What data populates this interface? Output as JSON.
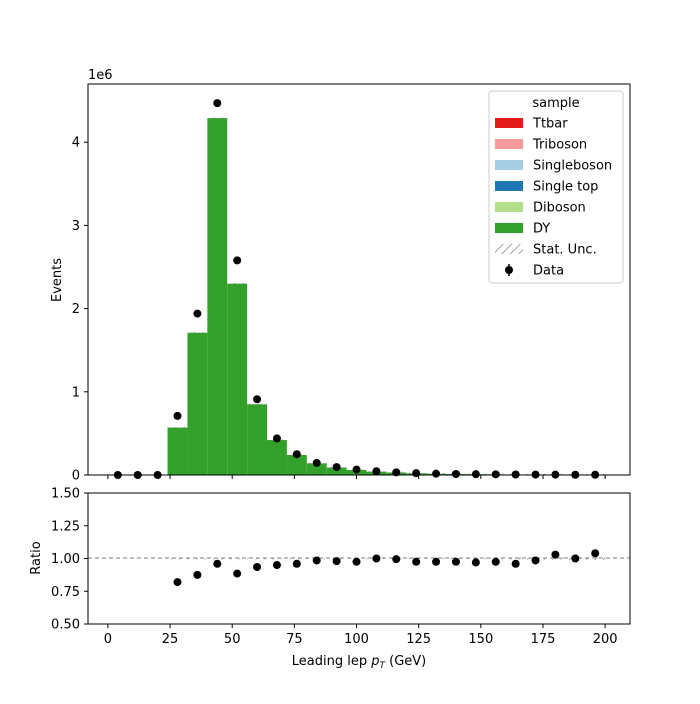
{
  "chart_data": {
    "type": "bar",
    "stacked": true,
    "main": {
      "ylabel": "Events",
      "offset_text": "1e6",
      "ylim": [
        0,
        4.7
      ],
      "yticks": [
        0,
        1,
        2,
        3,
        4
      ],
      "ytick_labels": [
        "0",
        "1",
        "2",
        "3",
        "4"
      ]
    },
    "ratio": {
      "ylabel": "Ratio",
      "ylim": [
        0.5,
        1.5
      ],
      "yticks": [
        0.5,
        0.75,
        1.0,
        1.25,
        1.5
      ],
      "ytick_labels": [
        "0.50",
        "0.75",
        "1.00",
        "1.25",
        "1.50"
      ],
      "reference": 1.0
    },
    "xlabel": "Leading lep $p_T$ (GeV)",
    "xlabel_text": "Leading lep ",
    "xlabel_p": "p",
    "xlabel_sub": "T",
    "xlabel_unit": " (GeV)",
    "xlim": [
      -8,
      210
    ],
    "xticks": [
      0,
      25,
      50,
      75,
      100,
      125,
      150,
      175,
      200
    ],
    "xtick_labels": [
      "0",
      "25",
      "50",
      "75",
      "100",
      "125",
      "150",
      "175",
      "200"
    ],
    "bin_edges": [
      0,
      8,
      16,
      24,
      32,
      40,
      48,
      56,
      64,
      72,
      80,
      88,
      96,
      104,
      112,
      120,
      128,
      136,
      144,
      152,
      160,
      168,
      176,
      184,
      192,
      200
    ],
    "bin_centers": [
      4,
      12,
      20,
      28,
      36,
      44,
      52,
      60,
      68,
      76,
      84,
      92,
      100,
      108,
      116,
      124,
      132,
      140,
      148,
      156,
      164,
      172,
      180,
      188,
      196
    ],
    "series": [
      {
        "name": "Ttbar",
        "color": "#e31a1c",
        "values": [
          0,
          0,
          0,
          0,
          0,
          0,
          0,
          0,
          0,
          0,
          0,
          0,
          0,
          0,
          0,
          0,
          0,
          0,
          0,
          0,
          0,
          0,
          0,
          0,
          0
        ]
      },
      {
        "name": "Triboson",
        "color": "#fb9a99",
        "values": [
          0,
          0,
          0,
          0,
          0,
          0,
          0,
          0,
          0,
          0,
          0,
          0,
          0,
          0,
          0,
          0,
          0,
          0,
          0,
          0,
          0,
          0,
          0,
          0,
          0
        ]
      },
      {
        "name": "Singleboson",
        "color": "#a6cee3",
        "values": [
          0,
          0,
          0,
          0,
          0,
          0,
          0,
          0,
          0,
          0,
          0,
          0,
          0,
          0,
          0,
          0,
          0,
          0,
          0,
          0,
          0,
          0,
          0,
          0,
          0
        ]
      },
      {
        "name": "Single top",
        "color": "#1f78b4",
        "values": [
          0,
          0,
          0,
          0,
          0,
          0,
          0,
          0,
          0,
          0,
          0,
          0,
          0,
          0,
          0,
          0,
          0,
          0,
          0,
          0,
          0,
          0,
          0,
          0,
          0
        ]
      },
      {
        "name": "Diboson",
        "color": "#b2df8a",
        "values": [
          0,
          0,
          0,
          0,
          0,
          0,
          0,
          0,
          0,
          0,
          0,
          0,
          0,
          0,
          0,
          0,
          0,
          0,
          0,
          0,
          0,
          0,
          0,
          0,
          0
        ]
      },
      {
        "name": "DY",
        "color": "#33a02c",
        "values": [
          0,
          0,
          0,
          0.57,
          1.71,
          4.29,
          2.3,
          0.85,
          0.42,
          0.24,
          0.14,
          0.09,
          0.06,
          0.04,
          0.03,
          0.02,
          0.015,
          0.012,
          0.01,
          0.008,
          0.006,
          0.005,
          0.004,
          0.003,
          0.003
        ]
      }
    ],
    "data": {
      "name": "Data",
      "values": [
        0,
        0,
        0,
        0.71,
        1.94,
        4.47,
        2.58,
        0.91,
        0.44,
        0.25,
        0.145,
        0.095,
        0.065,
        0.045,
        0.032,
        0.022,
        0.016,
        0.012,
        0.01,
        0.008,
        0.006,
        0.005,
        0.004,
        0.003,
        0.003
      ],
      "ratio": [
        null,
        null,
        null,
        0.82,
        0.875,
        0.96,
        0.885,
        0.935,
        0.95,
        0.96,
        0.985,
        0.98,
        0.975,
        1.0,
        0.995,
        0.975,
        0.975,
        0.975,
        0.97,
        0.975,
        0.96,
        0.985,
        1.03,
        1.0,
        1.04
      ]
    },
    "legend": {
      "title": "sample",
      "placement": "top-right",
      "entries": [
        "Ttbar",
        "Triboson",
        "Singleboson",
        "Single top",
        "Diboson",
        "DY",
        "Stat. Unc.",
        "Data"
      ]
    }
  }
}
